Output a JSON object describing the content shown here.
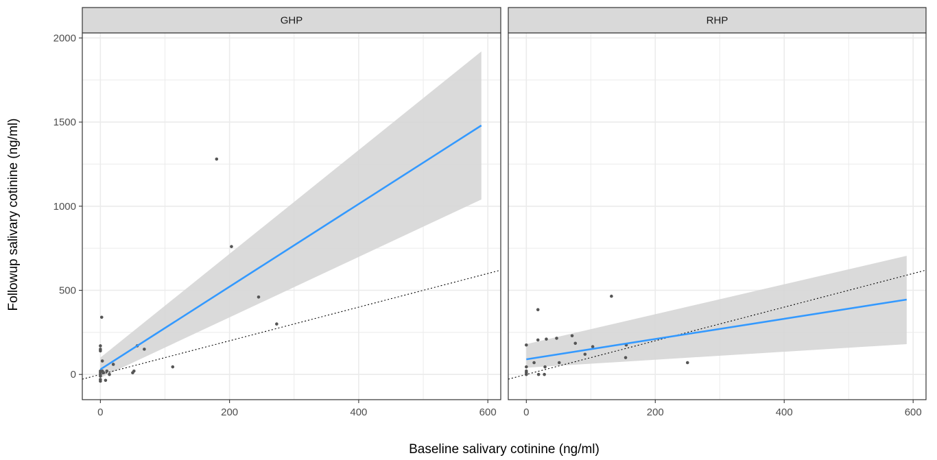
{
  "chart_data": {
    "type": "scatter",
    "xlabel": "Baseline salivary cotinine (ng/ml)",
    "ylabel": "Followup salivary cotinine (ng/ml)",
    "xlim": [
      -28,
      620
    ],
    "ylim": [
      -150,
      2030
    ],
    "x_ticks": [
      0,
      200,
      400,
      600
    ],
    "x_tick_labels": [
      "0",
      "200",
      "400",
      "600"
    ],
    "y_ticks": [
      0,
      500,
      1000,
      1500,
      2000
    ],
    "y_tick_labels": [
      "0",
      "500",
      "1000",
      "1500",
      "2000"
    ],
    "grid": true,
    "reference_line": {
      "style": "dotted",
      "slope": 1,
      "intercept": 0
    },
    "panels": [
      {
        "label": "GHP",
        "points": [
          [
            0,
            -40
          ],
          [
            0,
            -30
          ],
          [
            0,
            -10
          ],
          [
            0,
            0
          ],
          [
            0,
            10
          ],
          [
            0,
            20
          ],
          [
            0,
            140
          ],
          [
            0,
            150
          ],
          [
            0,
            170
          ],
          [
            2,
            340
          ],
          [
            3,
            80
          ],
          [
            3,
            20
          ],
          [
            5,
            10
          ],
          [
            8,
            -35
          ],
          [
            10,
            20
          ],
          [
            14,
            0
          ],
          [
            20,
            60
          ],
          [
            50,
            10
          ],
          [
            52,
            20
          ],
          [
            57,
            170
          ],
          [
            68,
            150
          ],
          [
            112,
            45
          ],
          [
            180,
            1280
          ],
          [
            203,
            760
          ],
          [
            245,
            460
          ],
          [
            273,
            300
          ]
        ],
        "fit": {
          "x": [
            0,
            590
          ],
          "y": [
            30,
            1480
          ]
        },
        "ci_band": {
          "x": [
            0,
            590
          ],
          "lower": [
            -20,
            1040
          ],
          "upper": [
            100,
            1920
          ]
        }
      },
      {
        "label": "RHP",
        "points": [
          [
            0,
            0
          ],
          [
            0,
            10
          ],
          [
            0,
            20
          ],
          [
            0,
            45
          ],
          [
            0,
            175
          ],
          [
            12,
            70
          ],
          [
            18,
            385
          ],
          [
            18,
            205
          ],
          [
            19,
            0
          ],
          [
            28,
            0
          ],
          [
            29,
            45
          ],
          [
            31,
            210
          ],
          [
            47,
            215
          ],
          [
            51,
            70
          ],
          [
            71,
            230
          ],
          [
            76,
            185
          ],
          [
            91,
            120
          ],
          [
            103,
            165
          ],
          [
            132,
            465
          ],
          [
            154,
            100
          ],
          [
            155,
            175
          ],
          [
            250,
            70
          ]
        ],
        "fit": {
          "x": [
            0,
            590
          ],
          "y": [
            90,
            445
          ]
        },
        "ci_band": {
          "x": [
            0,
            590
          ],
          "lower": [
            40,
            180
          ],
          "upper": [
            180,
            705
          ]
        }
      }
    ]
  },
  "colors": {
    "panel_border": "#333333",
    "strip_fill": "#d9d9d9",
    "grid": "#ebebeb",
    "fit_line": "#3399ff",
    "ci_band": "#d6d6d6",
    "points": "#555555",
    "reference_line": "#000000"
  }
}
